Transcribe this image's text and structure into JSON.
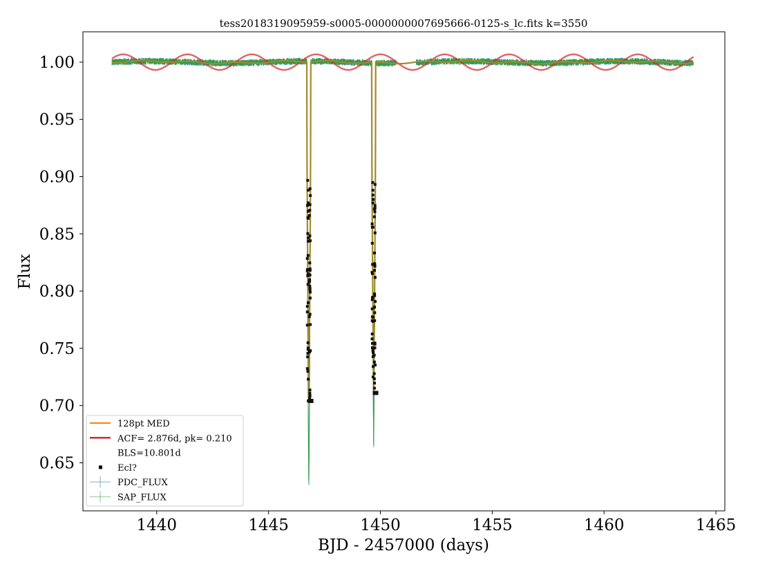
{
  "chart_data": {
    "type": "line",
    "title": "tess2018319095959-s0005-0000000007695666-0125-s_lc.fits k=3550",
    "xlabel": "BJD - 2457000 (days)",
    "ylabel": "Flux",
    "xlim": [
      1436.7,
      1465.4
    ],
    "ylim": [
      0.608,
      1.0265
    ],
    "xticks": [
      1440,
      1445,
      1450,
      1455,
      1460,
      1465
    ],
    "xtick_labels": [
      "1440",
      "1445",
      "1450",
      "1455",
      "1460",
      "1465"
    ],
    "yticks": [
      0.65,
      0.7,
      0.75,
      0.8,
      0.85,
      0.9,
      0.95,
      1.0
    ],
    "ytick_labels": [
      "0.65",
      "0.70",
      "0.75",
      "0.80",
      "0.85",
      "0.90",
      "0.95",
      "1.00"
    ],
    "legend_position": "lower-left",
    "grid": false,
    "data_start": 1438.0,
    "data_end": 1464.0,
    "gap": [
      1450.7,
      1451.6
    ],
    "eclipses": [
      {
        "center": 1446.8,
        "depth_pdc": 0.628,
        "depth_median": 0.703,
        "ecl_floor": 0.704,
        "ecl_top": 0.898
      },
      {
        "center": 1449.7,
        "depth_pdc": 0.666,
        "depth_median": 0.709,
        "ecl_floor": 0.711,
        "ecl_top": 0.897
      }
    ],
    "acf": {
      "period": 2.876,
      "amplitude": 0.0068,
      "baseline": 1.0
    },
    "series": [
      {
        "name": "128pt MED",
        "color": "#ff7f0e",
        "kind": "line"
      },
      {
        "name": "ACF= 2.876d, pk= 0.210",
        "color": "#d62728",
        "kind": "sine"
      },
      {
        "name": "BLS=10.801d",
        "color": "none",
        "kind": "label"
      },
      {
        "name": "Ecl?",
        "color": "#000000",
        "kind": "points"
      },
      {
        "name": "PDC_FLUX",
        "color": "#1f77b4",
        "kind": "errorbar"
      },
      {
        "name": "SAP_FLUX",
        "color": "#2ca02c",
        "kind": "errorbar"
      }
    ]
  }
}
